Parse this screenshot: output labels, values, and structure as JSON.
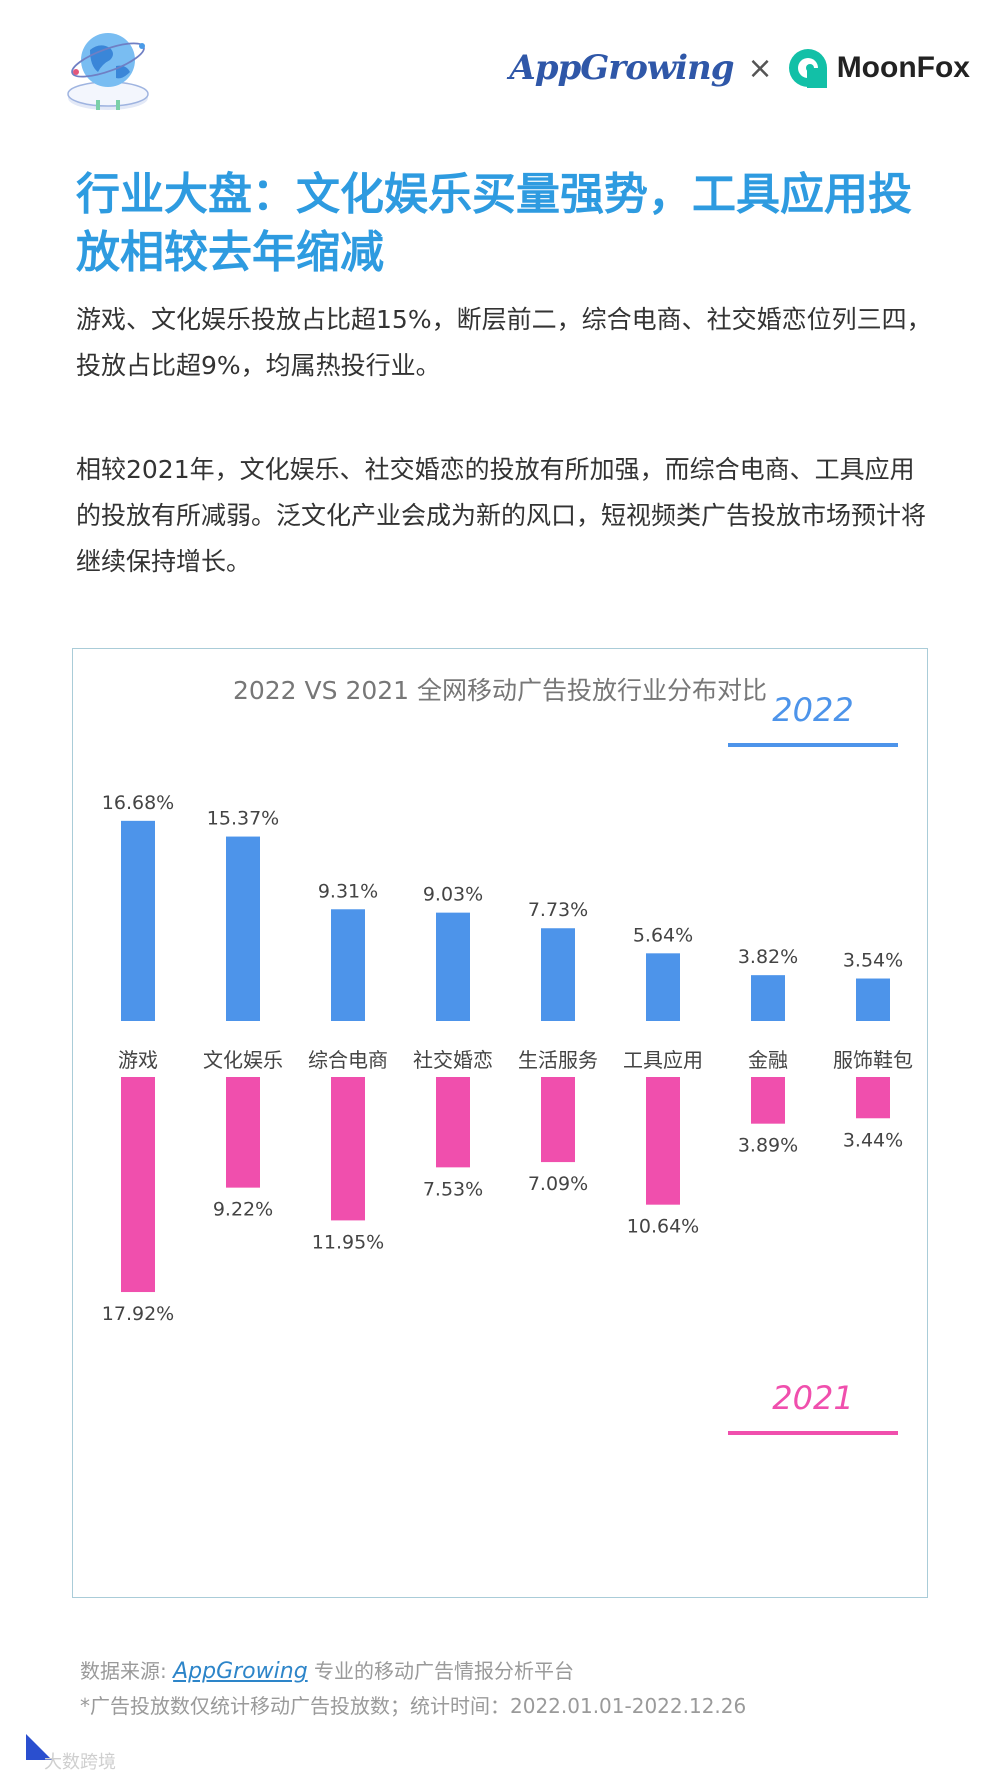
{
  "header": {
    "brand_left": "AppGrowing",
    "separator": "×",
    "brand_right": "MoonFox",
    "icons": [
      "globe-icon",
      "moonfox-logo-icon"
    ]
  },
  "article": {
    "title": "行业大盘：文化娱乐买量强势，工具应用投放相较去年缩减",
    "paragraph1": "游戏、文化娱乐投放占比超15%，断层前二，综合电商、社交婚恋位列三四，投放占比超9%，均属热投行业。",
    "paragraph2": "相较2021年，文化娱乐、社交婚恋的投放有所加强，而综合电商、工具应用的投放有所减弱。泛文化产业会成为新的风口，短视频类广告投放市场预计将继续保持增长。"
  },
  "chart_data": {
    "type": "bar",
    "title": "2022 VS 2021 全网移动广告投放行业分布对比",
    "categories": [
      "游戏",
      "文化娱乐",
      "综合电商",
      "社交婚恋",
      "生活服务",
      "工具应用",
      "金融",
      "服饰鞋包"
    ],
    "series": [
      {
        "name": "2022",
        "values": [
          16.68,
          15.37,
          9.31,
          9.03,
          7.73,
          5.64,
          3.82,
          3.54
        ],
        "labels": [
          "16.68%",
          "15.37%",
          "9.31%",
          "9.03%",
          "7.73%",
          "5.64%",
          "3.82%",
          "3.54%"
        ],
        "color": "#4d94ea",
        "direction": "up",
        "legend_position": "top-right"
      },
      {
        "name": "2021",
        "values": [
          17.92,
          9.22,
          11.95,
          7.53,
          7.09,
          10.64,
          3.89,
          3.44
        ],
        "labels": [
          "17.92%",
          "9.22%",
          "11.95%",
          "7.53%",
          "7.09%",
          "10.64%",
          "3.89%",
          "3.44%"
        ],
        "color": "#f04fad",
        "direction": "down",
        "legend_position": "bottom-right"
      }
    ],
    "unit": "%",
    "grid": false
  },
  "footer": {
    "source_prefix": "数据来源: ",
    "source_link": "AppGrowing",
    "source_suffix": " 专业的移动广告情报分析平台",
    "note": "*广告投放数仅统计移动广告投放数；统计时间：2022.01.01-2022.12.26",
    "watermark": "大数跨境"
  }
}
